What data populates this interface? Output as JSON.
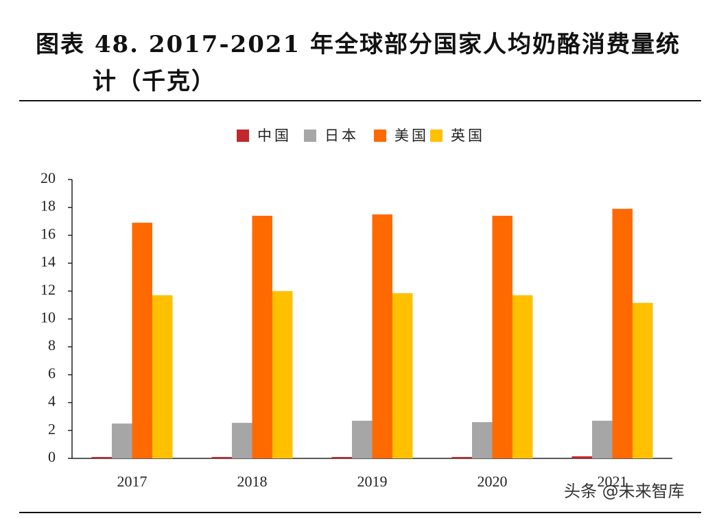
{
  "chart_data": {
    "type": "bar",
    "title": "图表 48. 2017-2021 年全球部分国家人均奶酪消费量统计（千克）",
    "categories": [
      "2017",
      "2018",
      "2019",
      "2020",
      "2021"
    ],
    "series": [
      {
        "name": "中国",
        "color": "#c0282d",
        "values": [
          0.1,
          0.1,
          0.1,
          0.1,
          0.15
        ]
      },
      {
        "name": "日本",
        "color": "#a6a6a6",
        "values": [
          2.5,
          2.55,
          2.7,
          2.6,
          2.7
        ]
      },
      {
        "name": "美国",
        "color": "#ff6a00",
        "values": [
          16.9,
          17.4,
          17.5,
          17.4,
          17.9
        ]
      },
      {
        "name": "英国",
        "color": "#ffc000",
        "values": [
          11.7,
          12.0,
          11.85,
          11.7,
          11.15
        ]
      }
    ],
    "ylim": [
      0,
      20
    ],
    "yticks": [
      0,
      2,
      4,
      6,
      8,
      10,
      12,
      14,
      16,
      18,
      20
    ],
    "watermark": "头条 @未来智库"
  }
}
